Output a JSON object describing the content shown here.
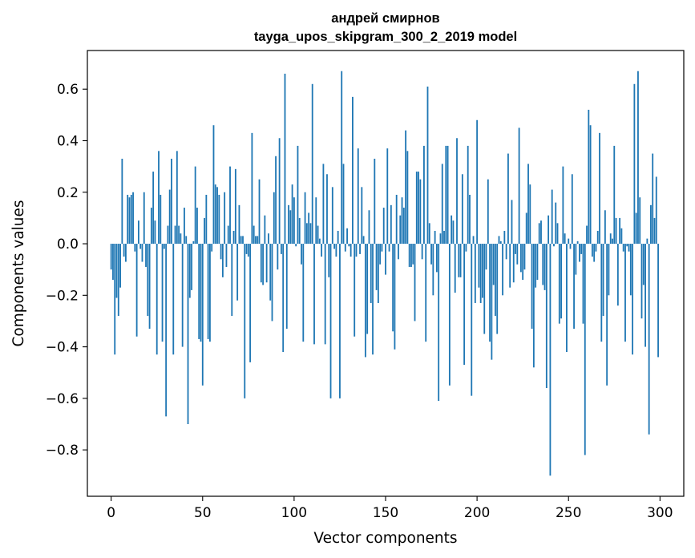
{
  "chart_data": {
    "type": "bar",
    "title": "андрей смирнов\ntayga_upos_skipgram_300_2_2019 model",
    "title_lines": [
      "андрей смирнов",
      "tayga_upos_skipgram_300_2_2019 model"
    ],
    "xlabel": "Vector components",
    "ylabel": "Components values",
    "xlim": [
      -13,
      313
    ],
    "ylim": [
      -0.98,
      0.75
    ],
    "xticks": [
      0,
      50,
      100,
      150,
      200,
      250,
      300
    ],
    "xtick_labels": [
      "0",
      "50",
      "100",
      "150",
      "200",
      "250",
      "300"
    ],
    "yticks": [
      -0.8,
      -0.6,
      -0.4,
      -0.2,
      0.0,
      0.2,
      0.4,
      0.6
    ],
    "ytick_labels": [
      "−0.8",
      "−0.6",
      "−0.4",
      "−0.2",
      "0.0",
      "0.2",
      "0.4",
      "0.6"
    ],
    "grid": false,
    "series": [
      {
        "name": "components",
        "color": "#1f77b4",
        "values": [
          -0.1,
          -0.14,
          -0.43,
          -0.21,
          -0.28,
          -0.17,
          0.33,
          -0.05,
          -0.07,
          0.19,
          0.18,
          0.19,
          0.2,
          -0.03,
          -0.36,
          0.09,
          -0.02,
          -0.07,
          0.2,
          -0.09,
          -0.28,
          -0.33,
          0.14,
          0.28,
          0.09,
          -0.43,
          0.36,
          0.19,
          -0.38,
          -0.02,
          -0.67,
          0.07,
          0.21,
          0.33,
          -0.43,
          0.07,
          0.36,
          0.07,
          0.04,
          -0.4,
          0.14,
          0.03,
          -0.7,
          -0.21,
          -0.18,
          0.01,
          0.3,
          0.14,
          -0.37,
          -0.38,
          -0.55,
          0.1,
          0.19,
          -0.37,
          -0.38,
          -0.03,
          0.46,
          0.23,
          0.22,
          0.19,
          -0.06,
          -0.13,
          0.2,
          -0.09,
          0.07,
          0.3,
          -0.28,
          0.05,
          0.29,
          -0.22,
          0.15,
          0.03,
          0.03,
          -0.6,
          -0.04,
          -0.05,
          -0.46,
          0.43,
          0.07,
          0.03,
          0.03,
          0.25,
          -0.15,
          -0.16,
          0.11,
          -0.15,
          0.04,
          -0.22,
          -0.3,
          0.2,
          0.34,
          -0.1,
          0.41,
          -0.04,
          -0.42,
          0.66,
          -0.33,
          0.15,
          0.13,
          0.23,
          0.18,
          -0.01,
          0.38,
          0.1,
          -0.08,
          -0.38,
          0.2,
          0.08,
          0.12,
          0.08,
          0.62,
          -0.39,
          0.18,
          0.07,
          0.02,
          -0.05,
          0.31,
          -0.39,
          0.27,
          -0.13,
          -0.6,
          0.22,
          -0.02,
          -0.05,
          0.05,
          -0.6,
          0.67,
          0.31,
          -0.03,
          0.06,
          -0.01,
          -0.05,
          0.57,
          -0.36,
          -0.05,
          0.37,
          -0.04,
          0.22,
          0.03,
          -0.44,
          -0.35,
          0.13,
          -0.23,
          -0.43,
          0.33,
          -0.18,
          -0.23,
          -0.08,
          -0.03,
          0.14,
          -0.12,
          0.37,
          -0.03,
          0.15,
          -0.34,
          -0.41,
          0.19,
          -0.06,
          0.11,
          0.18,
          0.14,
          0.44,
          0.36,
          -0.09,
          -0.09,
          -0.08,
          -0.3,
          0.28,
          0.28,
          0.25,
          -0.06,
          0.38,
          -0.38,
          0.61,
          0.08,
          -0.08,
          -0.2,
          0.05,
          -0.11,
          -0.61,
          0.04,
          0.31,
          0.05,
          0.38,
          0.38,
          -0.55,
          0.11,
          0.09,
          -0.19,
          0.41,
          -0.13,
          -0.13,
          0.27,
          -0.47,
          -0.03,
          0.38,
          0.19,
          -0.59,
          0.03,
          -0.23,
          0.48,
          -0.17,
          -0.23,
          -0.21,
          -0.35,
          -0.1,
          0.25,
          -0.38,
          -0.45,
          -0.16,
          -0.28,
          -0.35,
          0.03,
          0.01,
          -0.2,
          0.05,
          -0.06,
          0.35,
          -0.17,
          0.17,
          -0.15,
          -0.04,
          -0.08,
          0.45,
          -0.11,
          -0.14,
          -0.1,
          0.12,
          0.31,
          0.23,
          -0.33,
          -0.48,
          -0.17,
          -0.14,
          0.08,
          0.09,
          -0.16,
          -0.18,
          -0.56,
          0.11,
          -0.9,
          0.21,
          -0.01,
          0.16,
          0.08,
          -0.31,
          -0.29,
          0.3,
          0.04,
          -0.42,
          0.02,
          -0.02,
          0.27,
          -0.33,
          -0.12,
          0.01,
          -0.07,
          -0.04,
          -0.31,
          -0.82,
          0.07,
          0.52,
          0.46,
          -0.05,
          -0.07,
          -0.03,
          0.05,
          0.43,
          -0.38,
          -0.28,
          0.13,
          -0.55,
          -0.2,
          0.04,
          0.02,
          0.38,
          0.1,
          -0.24,
          0.1,
          0.06,
          -0.03,
          -0.38,
          -0.01,
          -0.03,
          -0.2,
          -0.43,
          0.62,
          0.12,
          0.67,
          0.18,
          -0.29,
          -0.16,
          -0.4,
          0.02,
          -0.74,
          0.15,
          0.35,
          0.1,
          0.26,
          -0.44
        ]
      }
    ]
  }
}
